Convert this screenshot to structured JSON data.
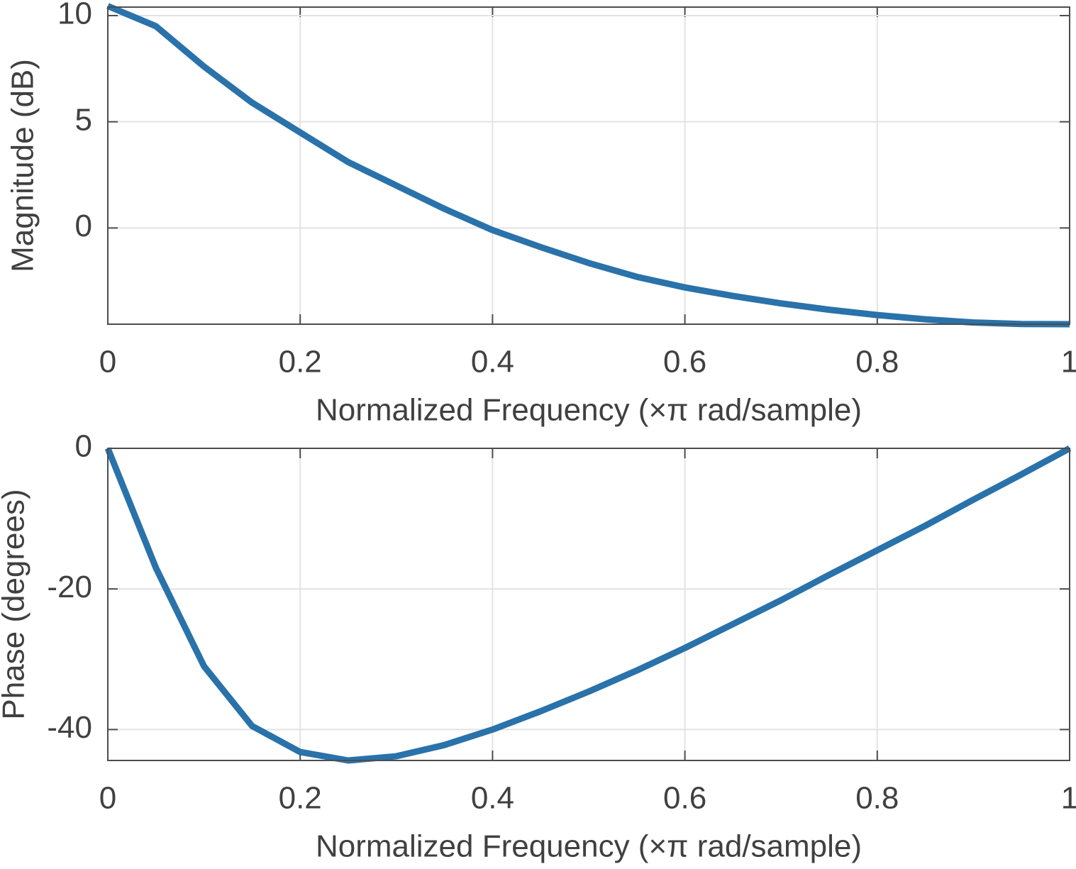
{
  "chart_data": [
    {
      "type": "line",
      "xlabel": "Normalized Frequency  (×π rad/sample)",
      "ylabel": "Magnitude (dB)",
      "x": [
        0,
        0.05,
        0.1,
        0.15,
        0.2,
        0.25,
        0.3,
        0.35,
        0.4,
        0.45,
        0.5,
        0.55,
        0.6,
        0.65,
        0.7,
        0.75,
        0.8,
        0.85,
        0.9,
        0.95,
        1
      ],
      "values": [
        10.45,
        9.5,
        7.6,
        5.9,
        4.5,
        3.1,
        2.0,
        0.9,
        -0.1,
        -0.9,
        -1.65,
        -2.3,
        -2.8,
        -3.2,
        -3.55,
        -3.85,
        -4.1,
        -4.3,
        -4.45,
        -4.52,
        -4.53
      ],
      "color": "#2a72aa",
      "xlim": [
        0,
        1
      ],
      "xticks": [
        0,
        0.2,
        0.4,
        0.6,
        0.8,
        1
      ],
      "ylim": [
        -4.53,
        10.4
      ],
      "yticks": [
        0,
        5,
        10
      ],
      "grid": true
    },
    {
      "type": "line",
      "xlabel": "Normalized Frequency  (×π rad/sample)",
      "ylabel": "Phase (degrees)",
      "x": [
        0,
        0.05,
        0.1,
        0.15,
        0.2,
        0.25,
        0.3,
        0.35,
        0.4,
        0.45,
        0.5,
        0.55,
        0.6,
        0.65,
        0.7,
        0.75,
        0.8,
        0.85,
        0.9,
        0.95,
        1
      ],
      "values": [
        0,
        -17,
        -31,
        -39.5,
        -43.2,
        -44.4,
        -43.8,
        -42.2,
        -40,
        -37.4,
        -34.6,
        -31.6,
        -28.4,
        -25,
        -21.6,
        -18,
        -14.5,
        -11,
        -7.3,
        -3.7,
        0
      ],
      "color": "#2a72aa",
      "xlim": [
        0,
        1
      ],
      "xticks": [
        0,
        0.2,
        0.4,
        0.6,
        0.8,
        1
      ],
      "ylim": [
        -44.4,
        0
      ],
      "yticks": [
        -40,
        -20,
        0
      ],
      "grid": true
    }
  ]
}
